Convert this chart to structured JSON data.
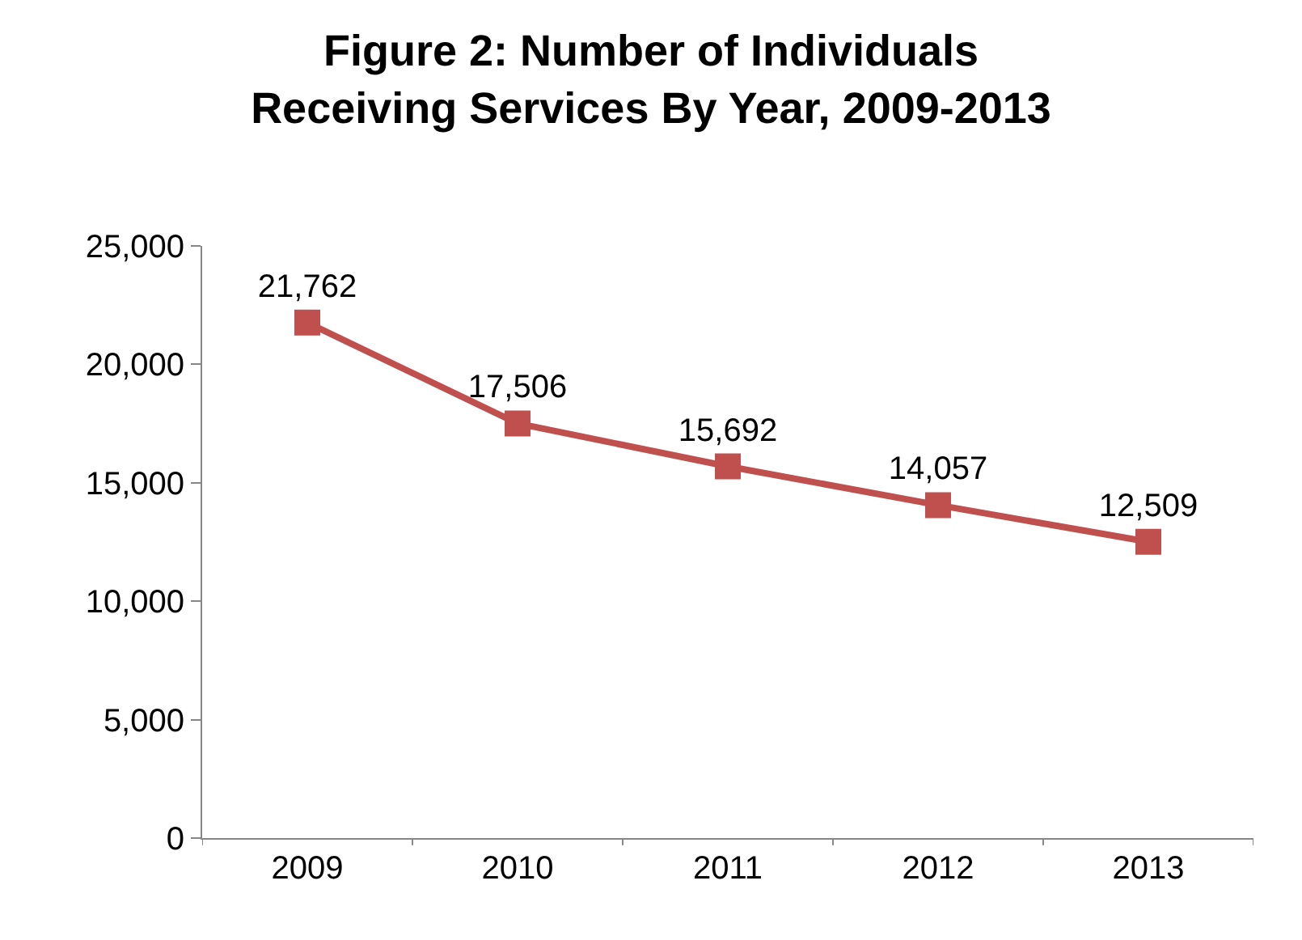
{
  "chart_data": {
    "type": "line",
    "title": "Figure 2: Number of Individuals\nReceiving Services By Year, 2009-2013",
    "categories": [
      "2009",
      "2010",
      "2011",
      "2012",
      "2013"
    ],
    "series": [
      {
        "color": "#c0504d",
        "values": [
          21762,
          17506,
          15692,
          14057,
          12509
        ],
        "value_labels": [
          "21,762",
          "17,506",
          "15,692",
          "14,057",
          "12,509"
        ]
      }
    ],
    "ylim": [
      0,
      25000
    ],
    "yticks": [
      {
        "value": 0,
        "label": "0"
      },
      {
        "value": 5000,
        "label": "5,000"
      },
      {
        "value": 10000,
        "label": "10,000"
      },
      {
        "value": 15000,
        "label": "15,000"
      },
      {
        "value": 20000,
        "label": "20,000"
      },
      {
        "value": 25000,
        "label": "25,000"
      }
    ],
    "marker": "square",
    "line_style": "solid"
  }
}
